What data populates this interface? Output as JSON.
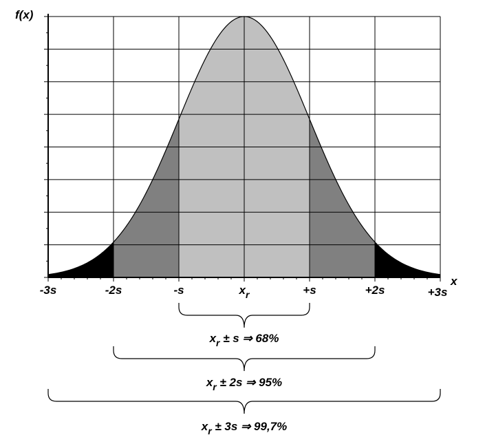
{
  "chart_data": {
    "type": "area",
    "ylabel": "f(x)",
    "xlabel": "x",
    "xlim": [
      -3,
      3
    ],
    "ylim": [
      0,
      1
    ],
    "grid": true,
    "x_ticks": [
      {
        "value": -3,
        "label": "-3s"
      },
      {
        "value": -2,
        "label": "-2s"
      },
      {
        "value": -1,
        "label": "-s"
      },
      {
        "value": 0,
        "label": "x",
        "sub": "r"
      },
      {
        "value": 1,
        "label": "+s"
      },
      {
        "value": 2,
        "label": "+2s"
      },
      {
        "value": 3,
        "label": "+3s"
      }
    ],
    "bands": [
      {
        "from": -1,
        "to": 1,
        "color": "#c0c0c0"
      },
      {
        "from": -2,
        "to": -1,
        "color": "#808080"
      },
      {
        "from": 1,
        "to": 2,
        "color": "#808080"
      },
      {
        "from": -3,
        "to": -2,
        "color": "#000000"
      },
      {
        "from": 2,
        "to": 3,
        "color": "#000000"
      }
    ],
    "annotations": [
      {
        "range": [
          -1,
          1
        ],
        "pre": "x",
        "sub": "r",
        "text": " ± s ⇒ 68%"
      },
      {
        "range": [
          -2,
          2
        ],
        "pre": "x",
        "sub": "r",
        "text": " ± 2s ⇒ 95%"
      },
      {
        "range": [
          -3,
          3
        ],
        "pre": "x",
        "sub": "r",
        "text": " ± 3s ⇒ 99,7%"
      }
    ]
  }
}
